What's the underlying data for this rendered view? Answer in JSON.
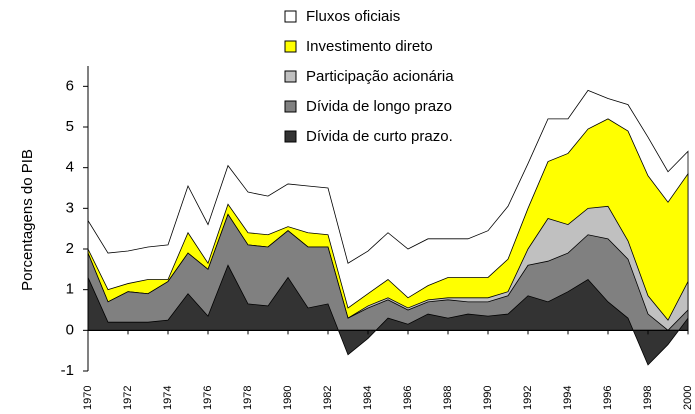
{
  "chart_data": {
    "type": "stacked_area",
    "y_label": "Porcentagens do PIB",
    "x": [
      1970,
      1971,
      1972,
      1973,
      1974,
      1975,
      1976,
      1977,
      1978,
      1979,
      1980,
      1981,
      1982,
      1983,
      1984,
      1985,
      1986,
      1987,
      1988,
      1989,
      1990,
      1991,
      1992,
      1993,
      1994,
      1995,
      1996,
      1997,
      1998,
      1999,
      2000
    ],
    "xlim": [
      1970,
      2000
    ],
    "xticks": [
      1970,
      1972,
      1974,
      1976,
      1978,
      1980,
      1982,
      1984,
      1986,
      1988,
      1990,
      1992,
      1994,
      1996,
      1998,
      2000
    ],
    "ylim": [
      -1,
      6.5
    ],
    "yticks": [
      -1,
      0,
      1,
      2,
      3,
      4,
      5,
      6
    ],
    "series": [
      {
        "name": "Dívida de curto prazo.",
        "color": "#333333",
        "values": [
          1.3,
          0.2,
          0.2,
          0.2,
          0.25,
          0.9,
          0.35,
          1.6,
          0.65,
          0.6,
          1.3,
          0.55,
          0.65,
          -0.6,
          -0.2,
          0.3,
          0.15,
          0.4,
          0.3,
          0.4,
          0.35,
          0.4,
          0.85,
          0.7,
          0.95,
          1.25,
          0.7,
          0.3,
          -0.85,
          -0.35,
          0.3
        ]
      },
      {
        "name": "Dívida de longo prazo",
        "color": "#808080",
        "values": [
          0.6,
          0.5,
          0.75,
          0.7,
          0.95,
          1.0,
          1.15,
          1.25,
          1.45,
          1.45,
          1.15,
          1.5,
          1.4,
          0.9,
          0.75,
          0.45,
          0.35,
          0.3,
          0.45,
          0.3,
          0.35,
          0.45,
          0.75,
          1.0,
          0.95,
          1.1,
          1.55,
          1.45,
          1.25,
          0.35,
          0.2
        ]
      },
      {
        "name": "Participação acionária",
        "color": "#c0c0c0",
        "values": [
          0,
          0,
          0,
          0,
          0,
          0,
          0,
          0,
          0,
          0,
          0,
          0,
          0,
          0,
          0.05,
          0.05,
          0.05,
          0.05,
          0.05,
          0.1,
          0.1,
          0.1,
          0.4,
          1.05,
          0.7,
          0.65,
          0.8,
          0.45,
          0.45,
          0.25,
          0.7
        ]
      },
      {
        "name": "Investimento direto",
        "color": "#ffff00",
        "values": [
          0.1,
          0.3,
          0.2,
          0.35,
          0.05,
          0.5,
          0.15,
          0.25,
          0.3,
          0.3,
          0.1,
          0.35,
          0.3,
          0.25,
          0.3,
          0.45,
          0.25,
          0.35,
          0.5,
          0.5,
          0.5,
          0.8,
          1.0,
          1.4,
          1.75,
          1.95,
          2.15,
          2.7,
          2.95,
          2.9,
          2.65
        ]
      },
      {
        "name": "Fluxos oficiais",
        "color": "#ffffff",
        "values": [
          0.7,
          0.9,
          0.8,
          0.8,
          0.85,
          1.15,
          0.95,
          0.95,
          1.0,
          0.95,
          1.05,
          1.15,
          1.15,
          1.1,
          1.05,
          1.15,
          1.2,
          1.15,
          0.95,
          0.95,
          1.15,
          1.3,
          1.1,
          1.05,
          0.85,
          0.95,
          0.5,
          0.65,
          0.95,
          0.75,
          0.55
        ]
      }
    ]
  }
}
